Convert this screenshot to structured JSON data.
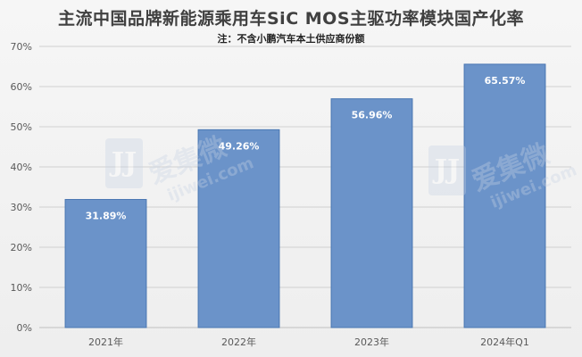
{
  "chart_data": {
    "type": "bar",
    "title": "主流中国品牌新能源乘用车SiC MOS主驱功率模块国产化率",
    "subtitle": "注：不含小鹏汽车本土供应商份额",
    "categories": [
      "2021年",
      "2022年",
      "2023年",
      "2024年Q1"
    ],
    "values": [
      31.89,
      49.26,
      56.96,
      65.57
    ],
    "data_labels": [
      "31.89%",
      "49.26%",
      "56.96%",
      "65.57%"
    ],
    "y_ticks": [
      "0%",
      "10%",
      "20%",
      "30%",
      "40%",
      "50%",
      "60%",
      "70%"
    ],
    "ylim": [
      0,
      70
    ],
    "grid": true,
    "legend": "none",
    "bar_color": "#6b93c9",
    "bar_edge_color": "#4a77b2",
    "grid_color": "#d0d0d0"
  },
  "watermark": {
    "logo_text": "JJ",
    "name": "爱集微",
    "url": "ijiwei.com"
  }
}
